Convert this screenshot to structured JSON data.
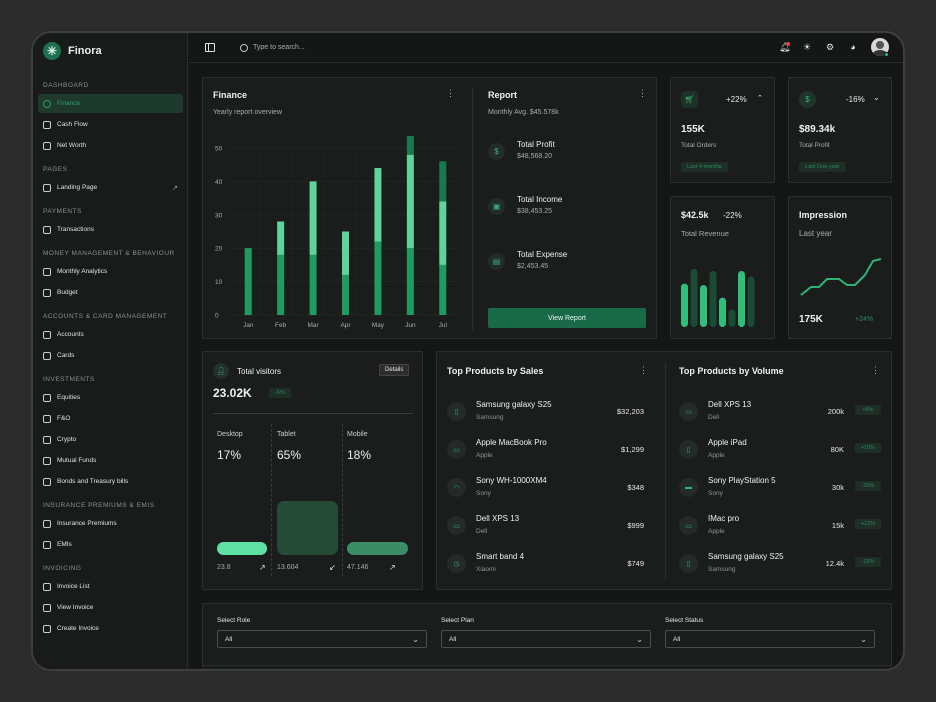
{
  "brand": {
    "name": "Finora"
  },
  "sidebar": {
    "sections": [
      {
        "title": "DASHBOARD",
        "items": [
          {
            "label": "Finance",
            "active": true
          },
          {
            "label": "Cash Flow"
          },
          {
            "label": "Net Worth"
          }
        ]
      },
      {
        "title": "PAGES",
        "items": [
          {
            "label": "Landing Page",
            "external": true
          }
        ]
      },
      {
        "title": "PAYMENTS",
        "items": [
          {
            "label": "Transactions"
          }
        ]
      },
      {
        "title": "MONEY MANAGEMENT & BEHAVIOUR",
        "items": [
          {
            "label": "Monthly Analytics"
          },
          {
            "label": "Budget"
          }
        ]
      },
      {
        "title": "ACCOUNTS & CARD MANAGEMENT",
        "items": [
          {
            "label": "Accounts"
          },
          {
            "label": "Cards"
          }
        ]
      },
      {
        "title": "INVESTMENTS",
        "items": [
          {
            "label": "Equities"
          },
          {
            "label": "F&O"
          },
          {
            "label": "Crypto"
          },
          {
            "label": "Mutual Funds"
          },
          {
            "label": "Bonds and Treasury bills"
          }
        ]
      },
      {
        "title": "INSURANCE PREMIUMS & EMIS",
        "items": [
          {
            "label": "Insurance Premiums"
          },
          {
            "label": "EMIs"
          }
        ]
      },
      {
        "title": "INVOICING",
        "items": [
          {
            "label": "Invoice List"
          },
          {
            "label": "View Invoice"
          },
          {
            "label": "Create Invoice"
          }
        ]
      }
    ]
  },
  "topbar": {
    "search_placeholder": "Type to search..."
  },
  "finance": {
    "title": "Finance",
    "subtitle": "Yearly report overview",
    "chart_data": {
      "type": "bar",
      "categories": [
        "Jan",
        "Feb",
        "Mar",
        "Apr",
        "May",
        "Jun",
        "Jul"
      ],
      "series": [
        {
          "values": [
            20,
            18,
            18,
            12,
            22,
            20,
            15
          ]
        },
        {
          "values": [
            0,
            10,
            22,
            13,
            22,
            28,
            19
          ]
        },
        {
          "values": [
            0,
            0,
            0,
            0,
            0,
            7,
            12
          ]
        }
      ],
      "yticks": [
        0,
        10,
        20,
        30,
        40,
        50
      ],
      "ylim": [
        0,
        50
      ]
    }
  },
  "report": {
    "title": "Report",
    "subtitle": "Monthly Avg. $45.578k",
    "items": [
      {
        "label": "Total Profit",
        "value": "$48,568.20",
        "icon": "dollar-icon"
      },
      {
        "label": "Total Income",
        "value": "$38,453.25",
        "icon": "wallet-icon"
      },
      {
        "label": "Total Expense",
        "value": "$2,453.45",
        "icon": "card-icon"
      }
    ],
    "button": "View Report"
  },
  "orders": {
    "value": "155K",
    "label": "Total Orders",
    "change": "+22%",
    "period": "Last 4 months"
  },
  "profit": {
    "value": "$89.34k",
    "label": "Total Profit",
    "change": "-16%",
    "period": "Last One year"
  },
  "revenue": {
    "value": "$42.5k",
    "change": "-22%",
    "label": "Total Revenue",
    "bars": [
      0.62,
      0.83,
      0.6,
      0.8,
      0.42,
      0.25,
      0.8,
      0.72
    ]
  },
  "impression": {
    "title": "Impression",
    "subtitle": "Last year",
    "value": "175K",
    "change": "+24%"
  },
  "visitors": {
    "title": "Total visitors",
    "value": "23.02K",
    "change": "-6%",
    "details": "Details",
    "devices": [
      {
        "name": "Desktop",
        "percent": "17%",
        "count": "23.8",
        "arrow": "↗"
      },
      {
        "name": "Tablet",
        "percent": "65%",
        "count": "13.604",
        "arrow": "↙"
      },
      {
        "name": "Mobile",
        "percent": "18%",
        "count": "47.146",
        "arrow": "↗"
      }
    ]
  },
  "top_sales": {
    "title": "Top Products by Sales",
    "items": [
      {
        "name": "Samsung galaxy S25",
        "brand": "Samsung",
        "value": "$32,203",
        "icon": "phone-icon"
      },
      {
        "name": "Apple MacBook Pro",
        "brand": "Apple",
        "value": "$1,299",
        "icon": "laptop-icon"
      },
      {
        "name": "Sony WH-1000XM4",
        "brand": "Sony",
        "value": "$348",
        "icon": "headphones-icon"
      },
      {
        "name": "Dell XPS 13",
        "brand": "Dell",
        "value": "$999",
        "icon": "monitor-icon"
      },
      {
        "name": "Smart band 4",
        "brand": "Xiaomi",
        "value": "$749",
        "icon": "watch-icon"
      }
    ]
  },
  "top_volume": {
    "title": "Top Products by Volume",
    "items": [
      {
        "name": "Dell XPS 13",
        "brand": "Dell",
        "value": "200k",
        "change": "+5%",
        "icon": "laptop-icon"
      },
      {
        "name": "Apple iPad",
        "brand": "Apple",
        "value": "80K",
        "change": "+10%",
        "icon": "tablet-icon"
      },
      {
        "name": "Sony PlayStation 5",
        "brand": "Sony",
        "value": "30k",
        "change": "-20%",
        "icon": "gamepad-icon"
      },
      {
        "name": "IMac pro",
        "brand": "Apple",
        "value": "15k",
        "change": "+12%",
        "icon": "monitor-icon"
      },
      {
        "name": "Samsung galaxy S25",
        "brand": "Samsung",
        "value": "12.4k",
        "change": "-15%",
        "icon": "phone-icon"
      }
    ]
  },
  "filters": [
    {
      "label": "Select Role",
      "value": "All"
    },
    {
      "label": "Select Plan",
      "value": "All"
    },
    {
      "label": "Select Status",
      "value": "All"
    }
  ]
}
